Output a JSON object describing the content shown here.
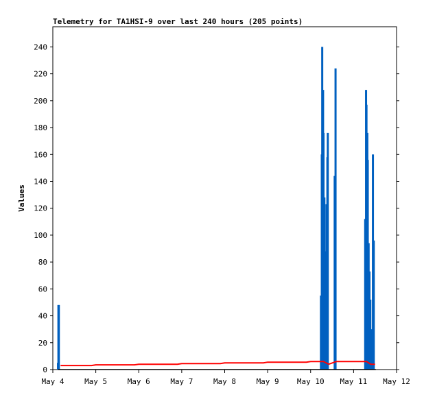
{
  "chart_data": {
    "type": "line",
    "title": "Telemetry for TA1HSI-9 over last 240 hours (205 points)",
    "xlabel": "",
    "ylabel": "Values",
    "x_ticks": [
      "May 4",
      "May 5",
      "May 6",
      "May 7",
      "May 8",
      "May 9",
      "May 10",
      "May 11",
      "May 12"
    ],
    "xlim": [
      0,
      8
    ],
    "ylim": [
      0,
      255
    ],
    "y_ticks": [
      0,
      20,
      40,
      60,
      80,
      100,
      120,
      140,
      160,
      180,
      200,
      220,
      240
    ],
    "grid": false,
    "colors": {
      "spikes": "#0060c0",
      "baseline": "#000000",
      "trend": "#ff0000"
    },
    "series": [
      {
        "style": "spikes",
        "color": "#0060c0",
        "points": [
          [
            0.12,
            5
          ],
          [
            0.13,
            48
          ],
          [
            0.14,
            48
          ],
          [
            6.24,
            55
          ],
          [
            6.26,
            160
          ],
          [
            6.27,
            240
          ],
          [
            6.29,
            208
          ],
          [
            6.3,
            176
          ],
          [
            6.32,
            128
          ],
          [
            6.33,
            88
          ],
          [
            6.35,
            62
          ],
          [
            6.37,
            123
          ],
          [
            6.39,
            158
          ],
          [
            6.4,
            176
          ],
          [
            6.56,
            144
          ],
          [
            6.58,
            224
          ],
          [
            7.27,
            112
          ],
          [
            7.29,
            208
          ],
          [
            7.3,
            197
          ],
          [
            7.32,
            176
          ],
          [
            7.33,
            156
          ],
          [
            7.35,
            94
          ],
          [
            7.37,
            73
          ],
          [
            7.39,
            52
          ],
          [
            7.42,
            30
          ],
          [
            7.45,
            160
          ],
          [
            7.47,
            96
          ]
        ]
      },
      {
        "style": "line",
        "color": "#000000",
        "points": [
          [
            0.12,
            0
          ],
          [
            7.52,
            0
          ]
        ]
      },
      {
        "style": "line",
        "color": "#ff0000",
        "points": [
          [
            0.18,
            3
          ],
          [
            0.9,
            3
          ],
          [
            1.0,
            3.5
          ],
          [
            1.9,
            3.5
          ],
          [
            2.0,
            4
          ],
          [
            2.9,
            4
          ],
          [
            3.0,
            4.5
          ],
          [
            3.9,
            4.5
          ],
          [
            4.0,
            5
          ],
          [
            4.9,
            5
          ],
          [
            5.0,
            5.5
          ],
          [
            5.9,
            5.5
          ],
          [
            6.0,
            6
          ],
          [
            6.3,
            6
          ],
          [
            6.42,
            4
          ],
          [
            6.6,
            6
          ],
          [
            7.0,
            6
          ],
          [
            7.3,
            6
          ],
          [
            7.4,
            4
          ],
          [
            7.5,
            4
          ]
        ]
      }
    ]
  }
}
